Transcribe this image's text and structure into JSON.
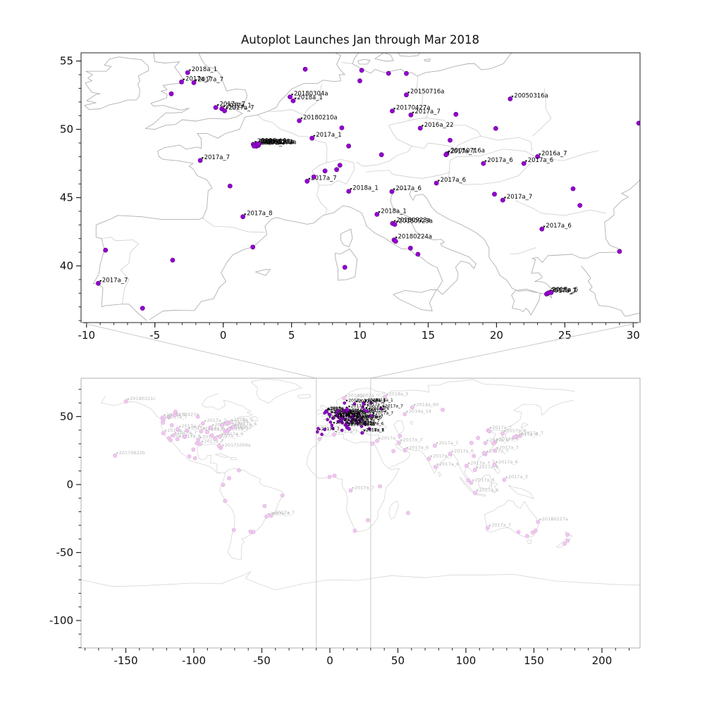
{
  "title": "Autoplot Launches Jan through Mar 2018",
  "colors": {
    "marker": "#9400d3",
    "marker_edge": "#5e0080",
    "marker_pale": "#f0c9f0",
    "marker_pale_edge": "#dba8db",
    "label_black": "#000000",
    "label_gray": "#b8b8b8",
    "coast_top": "#b0b0b0",
    "border_top": "#c6c6c6",
    "coast_bottom": "#d6d6d6",
    "frame_top": "#222222",
    "frame_bottom": "#b0b0b0",
    "connector": "#c9c9c9",
    "tick": "#222222"
  },
  "points_format": "[longitude, latitude, label(optional)]",
  "chart_data": [
    {
      "type": "scatter",
      "name": "europe-detail",
      "title": "Autoplot Launches Jan through Mar 2018",
      "xlabel": "",
      "ylabel": "",
      "xlim": [
        -10.4,
        30.5
      ],
      "ylim": [
        35.85,
        55.6
      ],
      "xticks": [
        -10,
        -5,
        0,
        5,
        10,
        15,
        20,
        25,
        30
      ],
      "yticks": [
        40,
        45,
        50,
        55
      ],
      "grid": false,
      "points": [
        [
          -2.6,
          54.15,
          "2018a_1"
        ],
        [
          -3.05,
          53.47,
          "2017a_7"
        ],
        [
          -2.15,
          53.42,
          "2017a_7"
        ],
        [
          -3.8,
          52.6
        ],
        [
          -0.55,
          51.6,
          "2017a_7"
        ],
        [
          -0.1,
          51.5,
          "2017a_1"
        ],
        [
          0.1,
          51.35,
          "2017a_7"
        ],
        [
          4.89,
          52.37,
          "20180304a"
        ],
        [
          5.12,
          52.09,
          "2018a_1"
        ],
        [
          6.0,
          54.4
        ],
        [
          10.13,
          54.32
        ],
        [
          12.1,
          54.1
        ],
        [
          13.4,
          54.09
        ],
        [
          10.0,
          53.55
        ],
        [
          13.4,
          52.52,
          "20150716a"
        ],
        [
          21.0,
          52.23,
          "20050316a"
        ],
        [
          17.03,
          51.1
        ],
        [
          12.37,
          51.34,
          "20170427a"
        ],
        [
          13.73,
          51.05,
          "2017a_7"
        ],
        [
          14.42,
          50.08,
          "2016a_22"
        ],
        [
          19.94,
          50.06
        ],
        [
          16.6,
          49.2
        ],
        [
          5.57,
          50.63,
          "20180210a"
        ],
        [
          8.68,
          50.11
        ],
        [
          6.5,
          49.35,
          "2017a_1"
        ],
        [
          9.18,
          48.78
        ],
        [
          11.58,
          48.14
        ],
        [
          2.35,
          48.86,
          "20180124a"
        ],
        [
          2.3,
          48.8,
          "20180117a"
        ],
        [
          2.45,
          48.85,
          "20180131a"
        ],
        [
          2.5,
          48.92,
          "2018a_1"
        ],
        [
          2.42,
          48.76,
          "2017a_7"
        ],
        [
          2.57,
          48.82,
          "20180207a"
        ],
        [
          2.2,
          48.9,
          "2018a_1"
        ],
        [
          2.25,
          48.78
        ],
        [
          2.62,
          48.94
        ],
        [
          -1.68,
          47.72,
          "2017a_7"
        ],
        [
          0.5,
          45.85
        ],
        [
          6.14,
          46.2,
          "2017a_7"
        ],
        [
          6.63,
          46.52
        ],
        [
          7.45,
          46.95
        ],
        [
          8.54,
          47.37
        ],
        [
          8.3,
          47.05
        ],
        [
          16.37,
          48.21,
          "20050716a"
        ],
        [
          16.3,
          48.14,
          "2017a_7"
        ],
        [
          23.0,
          48.0,
          "2016a_7"
        ],
        [
          19.04,
          47.5,
          "2017a_6"
        ],
        [
          22.0,
          47.5,
          "2017a_6"
        ],
        [
          15.6,
          46.06,
          "2017a_6"
        ],
        [
          9.19,
          45.46,
          "2018a_1"
        ],
        [
          12.34,
          45.44,
          "2017a_6"
        ],
        [
          19.85,
          45.25
        ],
        [
          25.6,
          45.65
        ],
        [
          20.46,
          44.82,
          "2017a_7"
        ],
        [
          26.1,
          44.43
        ],
        [
          23.32,
          42.7,
          "2017a_6"
        ],
        [
          1.44,
          43.6,
          "2017a_8"
        ],
        [
          2.17,
          41.38
        ],
        [
          11.25,
          43.77,
          "2018a_1"
        ],
        [
          12.39,
          43.11,
          "20180923a"
        ],
        [
          12.55,
          43.04,
          "20180923a"
        ],
        [
          12.5,
          41.9,
          "20180224a"
        ],
        [
          12.62,
          41.8
        ],
        [
          13.7,
          41.3
        ],
        [
          14.25,
          40.85
        ],
        [
          -9.14,
          38.72,
          "2017a_7"
        ],
        [
          -8.61,
          41.15
        ],
        [
          -3.7,
          40.42
        ],
        [
          -5.9,
          36.9
        ],
        [
          8.9,
          39.9
        ],
        [
          29.0,
          41.06
        ],
        [
          30.4,
          50.45
        ],
        [
          23.73,
          37.98,
          "2018a_1"
        ],
        [
          23.66,
          37.94,
          "2017a_7"
        ],
        [
          23.8,
          38.02,
          "2017a_6"
        ],
        [
          24.0,
          38.05
        ]
      ]
    },
    {
      "type": "scatter",
      "name": "world-overview",
      "title": "",
      "xlabel": "",
      "ylabel": "",
      "xlim": [
        -182.9,
        228.0
      ],
      "ylim": [
        -120.2,
        78.2
      ],
      "xticks": [
        -150,
        -100,
        -50,
        0,
        50,
        100,
        150,
        200
      ],
      "yticks": [
        -100,
        -50,
        0,
        50
      ],
      "grid": false,
      "zoom_band_lon": [
        -10,
        30
      ],
      "points": [
        [
          -149.9,
          61.2,
          "20180321c"
        ],
        [
          -118.3,
          49.5,
          "20180427a"
        ],
        [
          -157.9,
          21.3,
          "20170922b"
        ],
        [
          -80.2,
          27.0,
          "20171009a"
        ],
        [
          -123.1,
          49.3,
          "2017a_7"
        ],
        [
          -122.3,
          47.6,
          "2017a_7"
        ],
        [
          -122.7,
          45.5
        ],
        [
          -122.4,
          37.8,
          "2018a_1"
        ],
        [
          -118.2,
          34.05,
          "2017a_7"
        ],
        [
          -117.2,
          32.7
        ],
        [
          -115.1,
          36.2,
          "2017a_7"
        ],
        [
          -112.1,
          33.45,
          "2017a_6"
        ],
        [
          -111.9,
          40.8,
          "2017a_6"
        ],
        [
          -116.2,
          43.6
        ],
        [
          -114.1,
          51.0
        ],
        [
          -113.5,
          53.5
        ],
        [
          -106.6,
          35.1
        ],
        [
          -104.9,
          39.7,
          "2017a_7"
        ],
        [
          -97.7,
          30.3
        ],
        [
          -96.8,
          32.8,
          "2018a_1"
        ],
        [
          -95.4,
          29.8,
          "2017a_7"
        ],
        [
          -94.6,
          39.1,
          "2017a_6"
        ],
        [
          -97.1,
          49.9
        ],
        [
          -93.3,
          45.0,
          "2017a_7"
        ],
        [
          -90.2,
          38.6,
          "2017a_7"
        ],
        [
          -87.6,
          41.9,
          "2018a_1"
        ],
        [
          -86.8,
          36.2
        ],
        [
          -84.4,
          33.7,
          "2017a_7"
        ],
        [
          -81.4,
          28.5
        ],
        [
          -80.8,
          35.2,
          "2017a_6"
        ],
        [
          -77.0,
          38.9,
          "2017a_7"
        ],
        [
          -75.2,
          39.95,
          "2018a_1"
        ],
        [
          -74.0,
          40.7,
          "2017a_7"
        ],
        [
          -71.1,
          42.4,
          "2017a_6"
        ],
        [
          -79.4,
          43.7,
          "2017a_7"
        ],
        [
          -75.7,
          45.4
        ],
        [
          -73.6,
          45.5,
          "2018a_1"
        ],
        [
          -99.1,
          19.43
        ],
        [
          -103.3,
          20.7
        ],
        [
          -100.3,
          25.7
        ],
        [
          -66.9,
          10.5
        ],
        [
          -74.1,
          4.7
        ],
        [
          -78.5,
          -0.2
        ],
        [
          -77.0,
          -12.05
        ],
        [
          -70.6,
          -33.45
        ],
        [
          -58.4,
          -34.6
        ],
        [
          -56.2,
          -34.9
        ],
        [
          -46.6,
          -23.55,
          "2017a_7"
        ],
        [
          -43.2,
          -22.9,
          "2017a_7"
        ],
        [
          -47.9,
          -15.8
        ],
        [
          -34.9,
          -8.05
        ],
        [
          -7.6,
          33.6
        ],
        [
          3.06,
          36.75,
          "2017a_7"
        ],
        [
          3.4,
          6.45
        ],
        [
          -0.2,
          5.6
        ],
        [
          15.3,
          -4.3,
          "2017a_7"
        ],
        [
          36.8,
          -1.29
        ],
        [
          28.0,
          -26.2
        ],
        [
          18.4,
          -33.9
        ],
        [
          57.5,
          -20.9
        ],
        [
          31.2,
          30.04
        ],
        [
          34.8,
          32.08,
          "2017a_7"
        ],
        [
          46.7,
          24.6
        ],
        [
          55.3,
          25.2,
          "2017a_6"
        ],
        [
          51.4,
          35.7
        ],
        [
          50.8,
          30.8,
          "2017a_7"
        ],
        [
          40.5,
          64.5,
          "2018a_5"
        ],
        [
          10.4,
          63.43,
          "20180202a"
        ],
        [
          60.6,
          56.8,
          "2014a_60"
        ],
        [
          55.1,
          51.8,
          "2014a_14"
        ],
        [
          82.9,
          55.0
        ],
        [
          77.2,
          28.6,
          "2017a_7"
        ],
        [
          72.8,
          19.0,
          "2017a_7"
        ],
        [
          77.6,
          13.0,
          "2017a_6"
        ],
        [
          88.4,
          22.6,
          "2017a_6"
        ],
        [
          100.5,
          13.75,
          "2017a_7"
        ],
        [
          105.8,
          21.0
        ],
        [
          106.7,
          10.8,
          "2017a_6"
        ],
        [
          121.0,
          14.6,
          "2017a_6"
        ],
        [
          103.8,
          1.35,
          "2017a_6"
        ],
        [
          101.7,
          3.15
        ],
        [
          106.8,
          -6.2,
          "2017a_6"
        ],
        [
          128.2,
          3.5,
          "2017a_3"
        ],
        [
          116.4,
          39.9,
          "2017a_7"
        ],
        [
          117.2,
          39.1
        ],
        [
          127.0,
          37.55,
          "2017a_6"
        ],
        [
          139.7,
          35.68,
          "2017a_7"
        ],
        [
          135.5,
          34.69,
          "2017a_6"
        ],
        [
          136.9,
          35.18
        ],
        [
          121.5,
          31.23,
          "2017a_6"
        ],
        [
          120.2,
          30.27
        ],
        [
          114.1,
          22.54,
          "2017a_7"
        ],
        [
          114.2,
          22.3
        ],
        [
          121.5,
          25.03,
          "2017a_7"
        ],
        [
          113.3,
          23.13
        ],
        [
          104.1,
          30.66
        ],
        [
          114.3,
          30.59,
          "2017a_6"
        ],
        [
          108.9,
          34.26
        ],
        [
          115.9,
          -31.95,
          "2017a_7"
        ],
        [
          138.6,
          -34.93
        ],
        [
          145.0,
          -37.81
        ],
        [
          151.2,
          -33.87
        ],
        [
          153.0,
          -27.47,
          "20180227a"
        ],
        [
          149.1,
          -35.28
        ],
        [
          174.8,
          -36.85
        ],
        [
          174.8,
          -41.29
        ],
        [
          172.6,
          -43.53
        ]
      ],
      "cluster_points": [
        [
          37.6,
          55.75,
          "2017a_7"
        ],
        [
          30.3,
          59.94,
          "2018a_1"
        ],
        [
          30.5,
          50.45,
          "2017a_7"
        ],
        [
          27.56,
          53.9,
          "2017a_6"
        ],
        [
          24.94,
          60.17,
          "2018a_1"
        ],
        [
          18.07,
          59.33,
          "2017a_7"
        ],
        [
          10.75,
          59.91,
          "2018a_1"
        ],
        [
          24.1,
          56.95,
          "2017a_7"
        ],
        [
          25.28,
          54.69,
          "2017a_6"
        ],
        [
          24.75,
          59.44,
          "2018a_1"
        ],
        [
          12.57,
          55.68,
          "2017a_7"
        ]
      ]
    }
  ]
}
